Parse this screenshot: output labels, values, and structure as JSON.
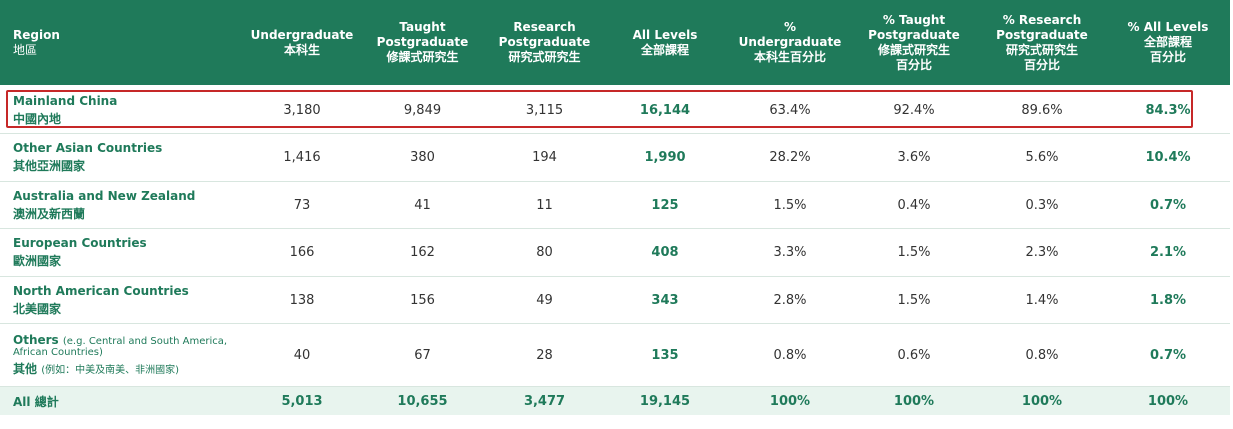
{
  "columns": [
    {
      "en": "Region",
      "zh": "地區"
    },
    {
      "en": "Undergraduate",
      "zh": "本科生"
    },
    {
      "en": "Taught Postgraduate",
      "zh": "修課式研究生"
    },
    {
      "en": "Research Postgraduate",
      "zh": "研究式研究生"
    },
    {
      "en": "All Levels",
      "zh": "全部課程"
    },
    {
      "en": "% Undergraduate",
      "zh": "本科生百分比"
    },
    {
      "en": "% Taught Postgraduate",
      "zh": "修課式研究生百分比"
    },
    {
      "en": "% Research Postgraduate",
      "zh": "研究式研究生百分比"
    },
    {
      "en": "% All Levels",
      "zh": "全部課程百分比"
    }
  ],
  "header_lines": {
    "c1": [
      "Undergraduate",
      "本科生"
    ],
    "c2": [
      "Taught",
      "Postgraduate",
      "修課式研究生"
    ],
    "c3": [
      "Research",
      "Postgraduate",
      "研究式研究生"
    ],
    "c4": [
      "All Levels",
      "全部課程"
    ],
    "c5": [
      "%",
      "Undergraduate",
      "本科生百分比"
    ],
    "c6": [
      "% Taught",
      "Postgraduate",
      "修課式研究生",
      "百分比"
    ],
    "c7": [
      "% Research",
      "Postgraduate",
      "研究式研究生",
      "百分比"
    ],
    "c8": [
      "% All Levels",
      "全部課程",
      "百分比"
    ]
  },
  "rows": [
    {
      "en": "Mainland China",
      "zh": "中國內地",
      "ug": "3,180",
      "tpg": "9,849",
      "rpg": "3,115",
      "all": "16,144",
      "p_ug": "63.4%",
      "p_tpg": "92.4%",
      "p_rpg": "89.6%",
      "p_all": "84.3%"
    },
    {
      "en": "Other Asian Countries",
      "zh": "其他亞洲國家",
      "ug": "1,416",
      "tpg": "380",
      "rpg": "194",
      "all": "1,990",
      "p_ug": "28.2%",
      "p_tpg": "3.6%",
      "p_rpg": "5.6%",
      "p_all": "10.4%"
    },
    {
      "en": "Australia and New Zealand",
      "zh": "澳洲及新西蘭",
      "ug": "73",
      "tpg": "41",
      "rpg": "11",
      "all": "125",
      "p_ug": "1.5%",
      "p_tpg": "0.4%",
      "p_rpg": "0.3%",
      "p_all": "0.7%"
    },
    {
      "en": "European Countries",
      "zh": "歐洲國家",
      "ug": "166",
      "tpg": "162",
      "rpg": "80",
      "all": "408",
      "p_ug": "3.3%",
      "p_tpg": "1.5%",
      "p_rpg": "2.3%",
      "p_all": "2.1%"
    },
    {
      "en": "North American Countries",
      "zh": "北美國家",
      "ug": "138",
      "tpg": "156",
      "rpg": "49",
      "all": "343",
      "p_ug": "2.8%",
      "p_tpg": "1.5%",
      "p_rpg": "1.4%",
      "p_all": "1.8%"
    },
    {
      "en": "Others",
      "en_note": "(e.g. Central and South America,",
      "en_note2": "African Countries)",
      "zh": "其他",
      "zh_note": "(例如：中美及南美、非洲國家)",
      "ug": "40",
      "tpg": "67",
      "rpg": "28",
      "all": "135",
      "p_ug": "0.8%",
      "p_tpg": "0.6%",
      "p_rpg": "0.8%",
      "p_all": "0.7%"
    }
  ],
  "total": {
    "label": "All 總計",
    "ug": "5,013",
    "tpg": "10,655",
    "rpg": "3,477",
    "all": "19,145",
    "p_ug": "100%",
    "p_tpg": "100%",
    "p_rpg": "100%",
    "p_all": "100%"
  },
  "colors": {
    "header_bg": "#1f7a5a",
    "accent": "#1f7a5a",
    "highlight": "#c62828",
    "total_bg": "#e8f4ee"
  }
}
